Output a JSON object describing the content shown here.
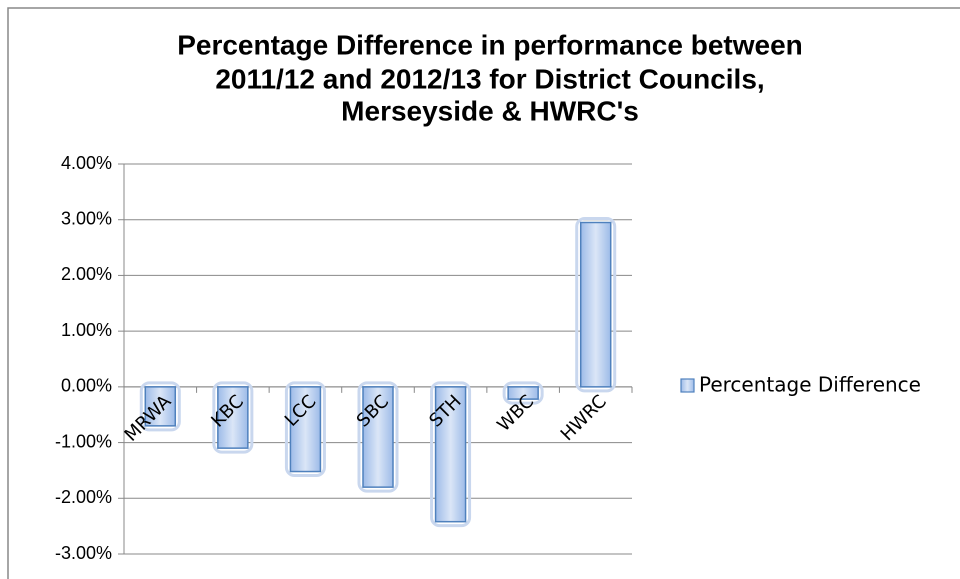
{
  "chart_data": {
    "type": "bar",
    "title": [
      "Percentage Difference in performance between",
      "2011/12 and 2012/13 for District Councils,",
      "Merseyside & HWRC's"
    ],
    "categories": [
      "MRWA",
      "KBC",
      "LCC",
      "SBC",
      "STH",
      "WBC",
      "HWRC"
    ],
    "series": [
      {
        "name": "Percentage Difference",
        "color": "#4f81bd",
        "values": [
          -0.7,
          -1.1,
          -1.52,
          -1.8,
          -2.42,
          -0.22,
          2.95
        ]
      }
    ],
    "ylim": [
      -3,
      4
    ],
    "yticks": [
      {
        "value": -3,
        "label": "-3.00%"
      },
      {
        "value": -2,
        "label": "-2.00%"
      },
      {
        "value": -1,
        "label": "-1.00%"
      },
      {
        "value": 0,
        "label": "0.00%"
      },
      {
        "value": 1,
        "label": "1.00%"
      },
      {
        "value": 2,
        "label": "2.00%"
      },
      {
        "value": 3,
        "label": "3.00%"
      },
      {
        "value": 4,
        "label": "4.00%"
      }
    ],
    "grid": true,
    "legend": "right"
  }
}
